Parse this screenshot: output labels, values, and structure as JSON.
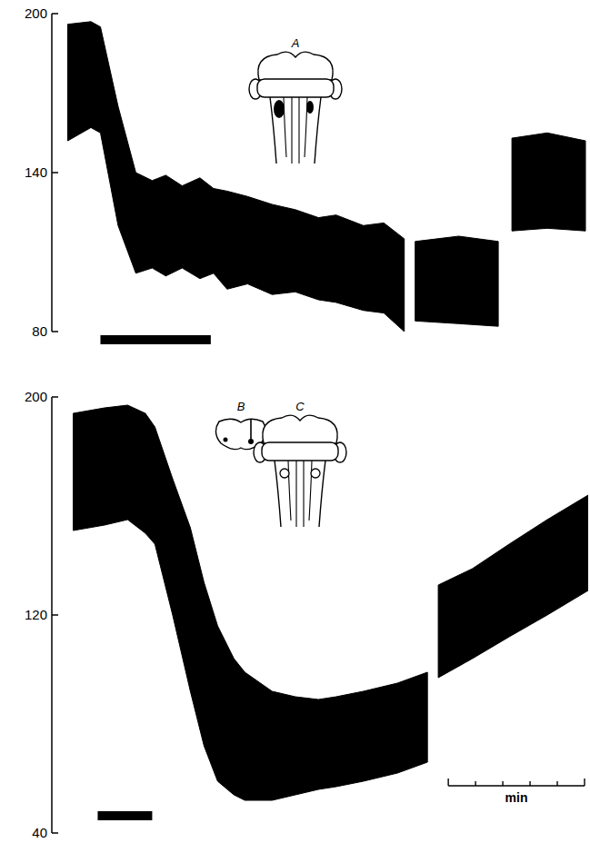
{
  "chart_data": [
    {
      "type": "area",
      "annotations": [
        "A"
      ],
      "x": [
        0.03,
        0.2,
        0.27,
        0.4,
        0.53,
        0.65,
        0.75,
        0.87,
        1.0,
        1.1,
        1.2,
        1.35,
        1.53,
        1.7,
        1.87,
        2.0,
        2.2,
        2.35,
        2.5,
        2.54,
        2.58,
        2.9,
        3.19,
        3.24,
        3.29,
        3.55,
        3.83
      ],
      "series": [
        {
          "color": "#000000",
          "values": [
            196,
            197,
            195,
            165,
            140,
            137,
            139,
            135,
            138,
            134,
            133,
            131,
            128,
            126,
            123,
            124,
            120,
            121,
            115,
            null,
            114,
            116,
            114,
            null,
            153,
            155,
            152
          ]
        },
        {
          "color": "#000000",
          "values": [
            152,
            157,
            155,
            120,
            102,
            104,
            101,
            104,
            100,
            102,
            96,
            98,
            94,
            95,
            92,
            91,
            88,
            87,
            80,
            null,
            84,
            83,
            82,
            null,
            118,
            119,
            118
          ]
        }
      ],
      "stimulus": [
        0.27,
        1.08
      ],
      "xlim": [
        0,
        3.85
      ],
      "ylim": [
        80,
        200
      ],
      "yticks": [
        80,
        140,
        200
      ],
      "tick_labels": "y"
    },
    {
      "type": "area",
      "annotations": [
        "B",
        "C"
      ],
      "x": [
        0.07,
        0.3,
        0.47,
        0.6,
        0.67,
        0.8,
        0.93,
        1.03,
        1.13,
        1.25,
        1.33,
        1.53,
        1.7,
        1.87,
        2.0,
        2.2,
        2.45,
        2.67,
        2.71,
        2.75,
        3.0,
        3.27,
        3.55,
        3.85
      ],
      "series": [
        {
          "color": "#000000",
          "values": [
            194,
            196,
            197,
            194,
            189,
            170,
            152,
            132,
            116,
            104,
            99,
            92,
            90,
            89,
            90,
            92,
            95,
            99,
            null,
            131,
            137,
            146,
            155,
            164
          ]
        },
        {
          "color": "#000000",
          "values": [
            151,
            153,
            155,
            150,
            146,
            120,
            92,
            72,
            59,
            54,
            52,
            52,
            54,
            56,
            57,
            59,
            62,
            66,
            null,
            97,
            104,
            112,
            120,
            129
          ]
        }
      ],
      "stimulus": [
        0.25,
        0.65
      ],
      "scale_bar": {
        "label": "min",
        "ticks": [
          0,
          0.2,
          0.4,
          0.6,
          0.8,
          1
        ]
      },
      "xlim": [
        0,
        3.85
      ],
      "ylim": [
        40,
        200
      ],
      "yticks": [
        40,
        120,
        200
      ],
      "tick_labels": "y"
    }
  ]
}
